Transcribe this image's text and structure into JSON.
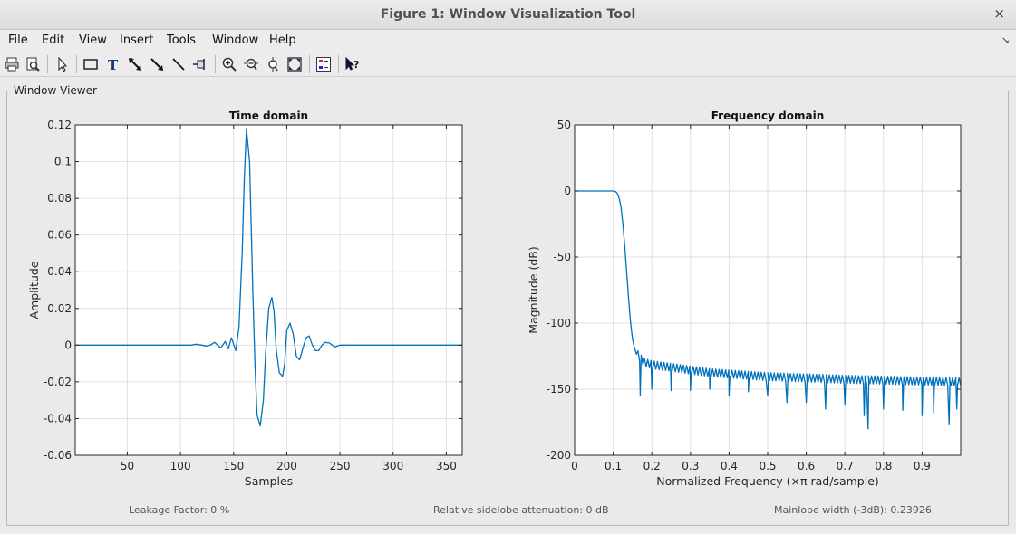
{
  "window": {
    "title": "Figure 1: Window Visualization Tool",
    "close_icon": "×"
  },
  "menu": [
    "File",
    "Edit",
    "View",
    "Insert",
    "Tools",
    "Window",
    "Help"
  ],
  "toolbar_icons": [
    "print-icon",
    "print-preview-icon",
    "select-arrow-icon",
    "rectangle-icon",
    "text-icon",
    "double-arrow-icon",
    "arrow-icon",
    "line-icon",
    "pin-icon",
    "zoom-in-icon",
    "zoom-out-icon",
    "pan-icon",
    "zoom-fit-icon",
    "legend-icon",
    "whats-this-icon"
  ],
  "panel": {
    "title": "Window Viewer"
  },
  "chart_data": [
    {
      "type": "line",
      "title": "Time domain",
      "xlabel": "Samples",
      "ylabel": "Amplitude",
      "xlim": [
        1,
        365
      ],
      "ylim": [
        -0.06,
        0.12
      ],
      "xticks": [
        50,
        100,
        150,
        200,
        250,
        300,
        350
      ],
      "yticks": [
        -0.06,
        -0.04,
        -0.02,
        0,
        0.02,
        0.04,
        0.06,
        0.08,
        0.1,
        0.12
      ],
      "xtick_labels": [
        "50",
        "100",
        "150",
        "200",
        "250",
        "300",
        "350"
      ],
      "ytick_labels": [
        "-0.06",
        "-0.04",
        "-0.02",
        "0",
        "0.02",
        "0.04",
        "0.06",
        "0.08",
        "0.1",
        "0.12"
      ],
      "grid": true,
      "color": "#0072BD",
      "series": [
        {
          "x": [
            1,
            100,
            110,
            115,
            120,
            125,
            128,
            132,
            135,
            138,
            142,
            145,
            148,
            152,
            155,
            158,
            160,
            162,
            165,
            168,
            170,
            172,
            175,
            178,
            180,
            183,
            186,
            188,
            190,
            193,
            196,
            198,
            200,
            203,
            206,
            209,
            212,
            215,
            218,
            221,
            224,
            227,
            230,
            233,
            236,
            240,
            245,
            250,
            260,
            270,
            280,
            365
          ],
          "y": [
            0,
            0,
            0,
            0.0005,
            0,
            -0.0005,
            0,
            0.0015,
            0,
            -0.0015,
            0.002,
            -0.002,
            0.004,
            -0.003,
            0.01,
            0.05,
            0.09,
            0.118,
            0.1,
            0.03,
            -0.01,
            -0.038,
            -0.044,
            -0.03,
            -0.005,
            0.02,
            0.026,
            0.018,
            -0.002,
            -0.015,
            -0.017,
            -0.01,
            0.008,
            0.012,
            0.006,
            -0.006,
            -0.008,
            -0.002,
            0.004,
            0.005,
            0,
            -0.003,
            -0.003,
            0,
            0.0015,
            0.0012,
            -0.001,
            0,
            0,
            0,
            0,
            0
          ]
        }
      ]
    },
    {
      "type": "line",
      "title": "Frequency domain",
      "xlabel": "Normalized Frequency  (×π rad/sample)",
      "ylabel": "Magnitude (dB)",
      "xlim": [
        0,
        1
      ],
      "ylim": [
        -200,
        50
      ],
      "xticks": [
        0,
        0.1,
        0.2,
        0.3,
        0.4,
        0.5,
        0.6,
        0.7,
        0.8,
        0.9
      ],
      "yticks": [
        -200,
        -150,
        -100,
        -50,
        0,
        50
      ],
      "xtick_labels": [
        "0",
        "0.1",
        "0.2",
        "0.3",
        "0.4",
        "0.5",
        "0.6",
        "0.7",
        "0.8",
        "0.9"
      ],
      "ytick_labels": [
        "-200",
        "-150",
        "-100",
        "-50",
        "0",
        "50"
      ],
      "grid": true,
      "color": "#0072BD",
      "series": [
        {
          "x": [
            0,
            0.1,
            0.105,
            0.11,
            0.115,
            0.12,
            0.125,
            0.13,
            0.135,
            0.14,
            0.145,
            0.15,
            0.155,
            0.158,
            0.16,
            0.165,
            0.17,
            0.18,
            0.2,
            0.25,
            0.3,
            0.35,
            0.4,
            0.45,
            0.5,
            0.55,
            0.6,
            0.65,
            0.7,
            0.75,
            0.8,
            0.85,
            0.9,
            0.95,
            1.0
          ],
          "y": [
            0,
            0,
            -0.3,
            -1.5,
            -5,
            -12,
            -25,
            -42,
            -62,
            -82,
            -100,
            -112,
            -119,
            -121,
            -122,
            -126,
            -128,
            -131,
            -133,
            -135,
            -137,
            -139,
            -140,
            -141,
            -142,
            -142.5,
            -143,
            -143.5,
            -144,
            -144.3,
            -144.6,
            -145,
            -145.3,
            -145.6,
            -146
          ]
        }
      ],
      "nulls": [
        [
          0.17,
          -155
        ],
        [
          0.2,
          -150
        ],
        [
          0.25,
          -151
        ],
        [
          0.3,
          -151
        ],
        [
          0.35,
          -150
        ],
        [
          0.4,
          -155
        ],
        [
          0.45,
          -152
        ],
        [
          0.5,
          -155
        ],
        [
          0.55,
          -160
        ],
        [
          0.6,
          -160
        ],
        [
          0.65,
          -165
        ],
        [
          0.7,
          -162
        ],
        [
          0.75,
          -170
        ],
        [
          0.76,
          -180
        ],
        [
          0.8,
          -165
        ],
        [
          0.85,
          -166
        ],
        [
          0.9,
          -170
        ],
        [
          0.93,
          -168
        ],
        [
          0.97,
          -177
        ],
        [
          0.99,
          -165
        ]
      ]
    }
  ],
  "status": {
    "leakage": "Leakage Factor: 0 %",
    "sidelobe": "Relative sidelobe attenuation: 0 dB",
    "mainlobe": "Mainlobe width (-3dB): 0.23926"
  }
}
